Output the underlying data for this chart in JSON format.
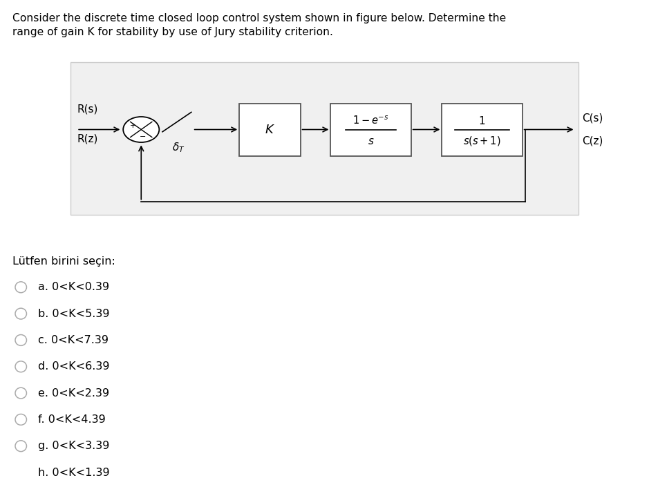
{
  "title_line1": "Consider the discrete time closed loop control system shown in figure below. Determine the",
  "title_line2": "range of gain K for stability by use of Jury stability criterion.",
  "bg_color": "#ffffff",
  "text_color": "#000000",
  "question_text": "Lütfen birini seçin:",
  "options": [
    "a. 0<K<0.39",
    "b. 0<K<5.39",
    "c. 0<K<7.39",
    "d. 0<K<6.39",
    "e. 0<K<2.39",
    "f. 0<K<4.39",
    "g. 0<K<3.39",
    "h. 0<K<1.39"
  ],
  "label_Rs": "R(s)",
  "label_Rz": "R(z)",
  "label_Cs": "C(s)",
  "label_Cz": "C(z)",
  "label_deltaT": "$\\delta_T$",
  "diagram_bg": "#f0f0f0",
  "outer_box_color": "#cccccc",
  "summing_r": 0.028
}
